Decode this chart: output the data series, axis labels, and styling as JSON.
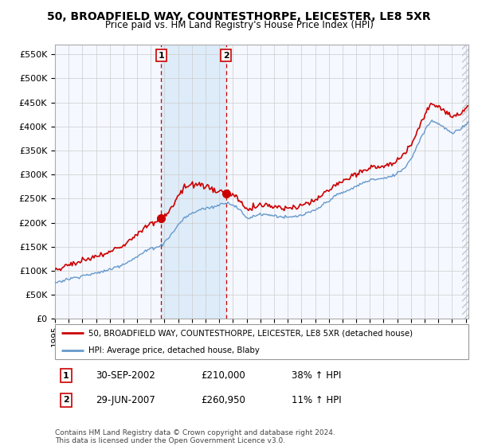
{
  "title": "50, BROADFIELD WAY, COUNTESTHORPE, LEICESTER, LE8 5XR",
  "subtitle": "Price paid vs. HM Land Registry's House Price Index (HPI)",
  "sale1_date": "30-SEP-2002",
  "sale1_price": 210000,
  "sale1_year": 2002.75,
  "sale1_hpi_str": "38% ↑ HPI",
  "sale2_date": "29-JUN-2007",
  "sale2_price": 260950,
  "sale2_year": 2007.5,
  "sale2_hpi_str": "11% ↑ HPI",
  "legend_property": "50, BROADFIELD WAY, COUNTESTHORPE, LEICESTER, LE8 5XR (detached house)",
  "legend_hpi": "HPI: Average price, detached house, Blaby",
  "footer": "Contains HM Land Registry data © Crown copyright and database right 2024.\nThis data is licensed under the Open Government Licence v3.0.",
  "property_color": "#cc0000",
  "hpi_color": "#6699cc",
  "fill_color": "#d0e4f5",
  "hatch_color": "#c0c8d0",
  "ylim_min": 0,
  "ylim_max": 570000,
  "xlim_min": 1995,
  "xlim_max": 2025.2,
  "plot_bg_color": "#f5f8ff",
  "grid_color": "#cccccc",
  "title_fontsize": 10,
  "subtitle_fontsize": 8.5
}
